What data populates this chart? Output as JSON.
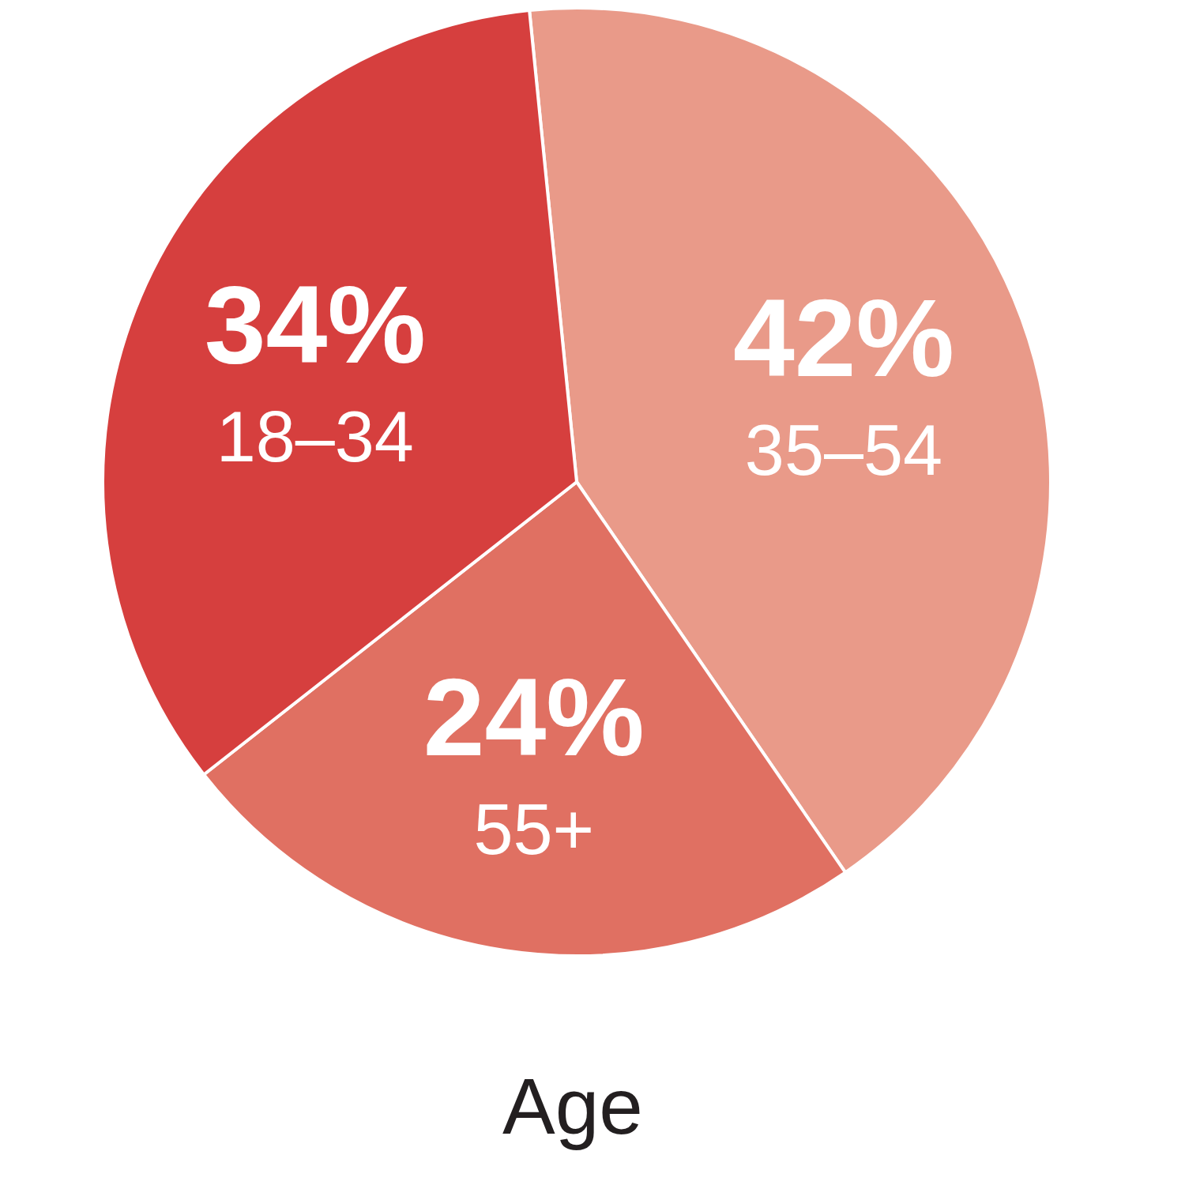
{
  "chart_data": {
    "type": "pie",
    "title": "Age",
    "categories": [
      "35–54",
      "55+",
      "18–34"
    ],
    "values": [
      42,
      24,
      34
    ],
    "value_labels": [
      "42%",
      "24%",
      "34%"
    ],
    "colors": [
      "#e99a89",
      "#e07062",
      "#d63f3e"
    ]
  }
}
